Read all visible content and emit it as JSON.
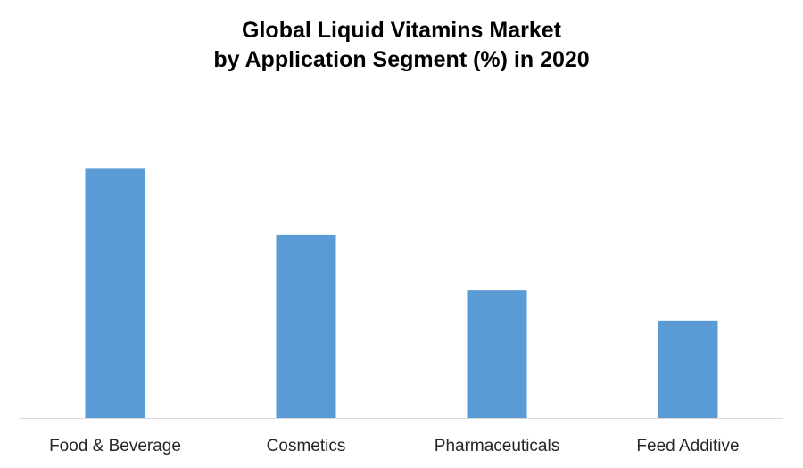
{
  "chart_data": {
    "type": "bar",
    "title_lines": [
      "Global Liquid Vitamins Market",
      "by Application Segment (%) in 2020"
    ],
    "categories": [
      "Food & Beverage",
      "Cosmetics",
      "Pharmaceuticals",
      "Feed Additive"
    ],
    "values": [
      37.9,
      27.8,
      19.5,
      14.8
    ],
    "xlabel": "",
    "ylabel": "",
    "ylim": [
      0,
      45
    ],
    "y_axis_visible": false,
    "grid": false,
    "legend": "none",
    "bar_color": "#5B9BD5",
    "baseline_color": "#D9D9D9"
  }
}
